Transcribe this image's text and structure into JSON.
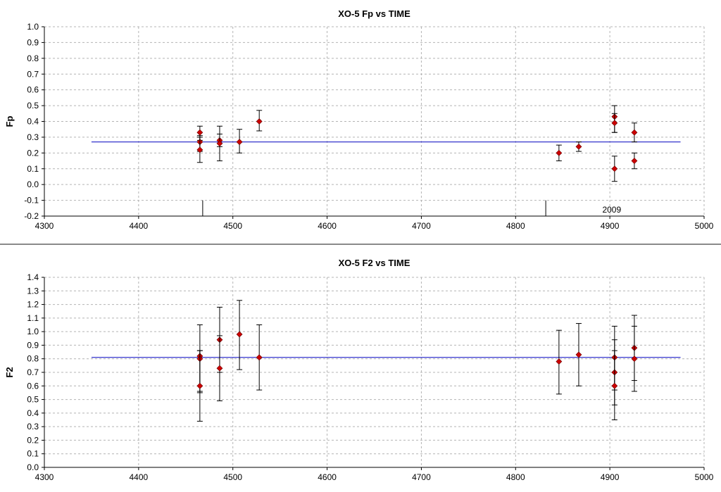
{
  "chart_data": [
    {
      "type": "scatter",
      "title": "XO-5 Fp vs TIME",
      "xlabel": "",
      "ylabel": "Fp",
      "xlim": [
        4300,
        5000
      ],
      "ylim": [
        -0.2,
        1.0
      ],
      "x_ticks": [
        "4300",
        "4400",
        "4500",
        "4600",
        "4700",
        "4800",
        "4900",
        "5000"
      ],
      "y_ticks": [
        "-0.2",
        "-0.1",
        "0.0",
        "0.1",
        "0.2",
        "0.3",
        "0.4",
        "0.5",
        "0.6",
        "0.7",
        "0.8",
        "0.9",
        "1.0"
      ],
      "grid": true,
      "series": [
        {
          "color": "#cc0000",
          "points": [
            {
              "x": 4465,
              "y": 0.33,
              "lo": 0.28,
              "hi": 0.37
            },
            {
              "x": 4465,
              "y": 0.27,
              "lo": 0.21,
              "hi": 0.31
            },
            {
              "x": 4465,
              "y": 0.22,
              "lo": 0.14,
              "hi": 0.3
            },
            {
              "x": 4486,
              "y": 0.28,
              "lo": 0.24,
              "hi": 0.37
            },
            {
              "x": 4486,
              "y": 0.26,
              "lo": 0.15,
              "hi": 0.32
            },
            {
              "x": 4507,
              "y": 0.27,
              "lo": 0.2,
              "hi": 0.35
            },
            {
              "x": 4528,
              "y": 0.4,
              "lo": 0.34,
              "hi": 0.47
            },
            {
              "x": 4846,
              "y": 0.2,
              "lo": 0.15,
              "hi": 0.25
            },
            {
              "x": 4867,
              "y": 0.24,
              "lo": 0.21,
              "hi": 0.27
            },
            {
              "x": 4905,
              "y": 0.43,
              "lo": 0.33,
              "hi": 0.5
            },
            {
              "x": 4905,
              "y": 0.39,
              "lo": 0.33,
              "hi": 0.45
            },
            {
              "x": 4905,
              "y": 0.1,
              "lo": 0.02,
              "hi": 0.18
            },
            {
              "x": 4926,
              "y": 0.33,
              "lo": 0.27,
              "hi": 0.39
            },
            {
              "x": 4926,
              "y": 0.15,
              "lo": 0.1,
              "hi": 0.2
            }
          ]
        }
      ],
      "fit_line": {
        "x_start": 4350,
        "x_end": 4975,
        "y": 0.27,
        "color": "#3333cc"
      },
      "markers": [
        {
          "x": 4468,
          "y_from": -0.2,
          "y_to": -0.1
        },
        {
          "x": 4832,
          "y_from": -0.2,
          "y_to": -0.1
        }
      ],
      "annotations": [
        {
          "text": "2009",
          "x": 4902,
          "y": -0.16
        }
      ]
    },
    {
      "type": "scatter",
      "title": "XO-5 F2 vs TIME",
      "xlabel": "",
      "ylabel": "F2",
      "xlim": [
        4300,
        5000
      ],
      "ylim": [
        0.0,
        1.4
      ],
      "x_ticks": [
        "4300",
        "4400",
        "4500",
        "4600",
        "4700",
        "4800",
        "4900",
        "5000"
      ],
      "y_ticks": [
        "0.0",
        "0.1",
        "0.2",
        "0.3",
        "0.4",
        "0.5",
        "0.6",
        "0.7",
        "0.8",
        "0.9",
        "1.0",
        "1.1",
        "1.2",
        "1.3",
        "1.4"
      ],
      "grid": true,
      "series": [
        {
          "color": "#cc0000",
          "points": [
            {
              "x": 4465,
              "y": 0.82,
              "lo": 0.56,
              "hi": 1.05
            },
            {
              "x": 4465,
              "y": 0.8,
              "lo": 0.55,
              "hi": 0.86
            },
            {
              "x": 4465,
              "y": 0.6,
              "lo": 0.34,
              "hi": 0.86
            },
            {
              "x": 4486,
              "y": 0.94,
              "lo": 0.7,
              "hi": 1.18
            },
            {
              "x": 4486,
              "y": 0.73,
              "lo": 0.49,
              "hi": 0.97
            },
            {
              "x": 4507,
              "y": 0.98,
              "lo": 0.72,
              "hi": 1.23
            },
            {
              "x": 4528,
              "y": 0.81,
              "lo": 0.57,
              "hi": 1.05
            },
            {
              "x": 4846,
              "y": 0.78,
              "lo": 0.54,
              "hi": 1.01
            },
            {
              "x": 4867,
              "y": 0.83,
              "lo": 0.6,
              "hi": 1.06
            },
            {
              "x": 4905,
              "y": 0.81,
              "lo": 0.57,
              "hi": 1.04
            },
            {
              "x": 4905,
              "y": 0.7,
              "lo": 0.46,
              "hi": 0.94
            },
            {
              "x": 4905,
              "y": 0.6,
              "lo": 0.35,
              "hi": 0.86
            },
            {
              "x": 4926,
              "y": 0.88,
              "lo": 0.64,
              "hi": 1.12
            },
            {
              "x": 4926,
              "y": 0.8,
              "lo": 0.56,
              "hi": 1.04
            }
          ]
        }
      ],
      "fit_line": {
        "x_start": 4350,
        "x_end": 4975,
        "y": 0.81,
        "color": "#3333cc"
      }
    }
  ]
}
